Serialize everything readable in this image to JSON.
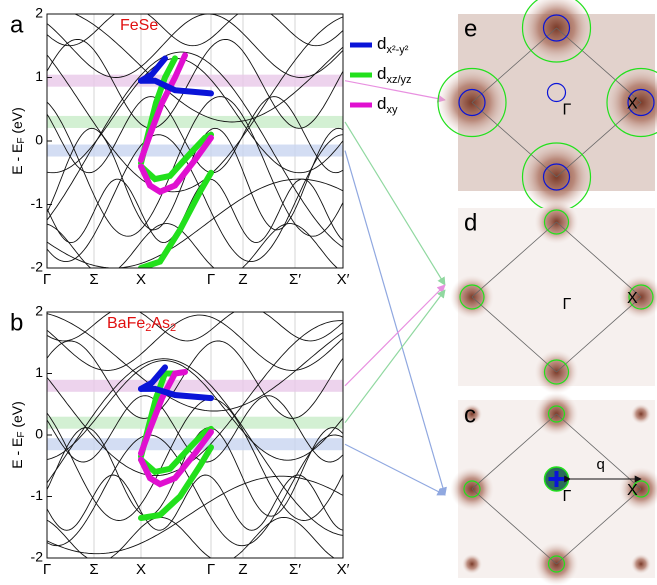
{
  "panels": [
    {
      "label": "a",
      "material_parts": [
        "FeSe"
      ]
    },
    {
      "label": "b",
      "material_parts": [
        "BaFe",
        "2",
        "As",
        "2"
      ]
    }
  ],
  "y_axis_label_parts": [
    "E - E",
    "F",
    " (eV)"
  ],
  "yticks": [
    "2",
    "1",
    "0",
    "-1",
    "-2"
  ],
  "xticks": [
    "Γ",
    "Σ",
    "X",
    "Γ",
    "Z",
    "Σ′",
    "X′"
  ],
  "legend": [
    {
      "base": "d",
      "sub": "x²-y²",
      "color": "#0a14d8"
    },
    {
      "base": "d",
      "sub": "xz/yz",
      "color": "#22e01c"
    },
    {
      "base": "d",
      "sub": "xy",
      "color": "#e010d0"
    }
  ],
  "maps": [
    {
      "label": "e",
      "gamma": "Γ",
      "x": "X"
    },
    {
      "label": "d",
      "gamma": "Γ",
      "x": "X"
    },
    {
      "label": "c",
      "gamma": "Γ",
      "x": "X",
      "q": "q"
    }
  ]
}
